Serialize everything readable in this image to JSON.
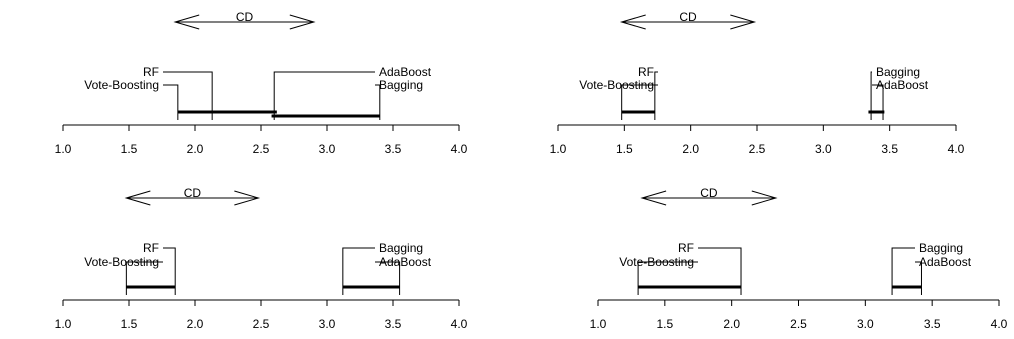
{
  "chart_data": [
    {
      "type": "critical-difference-diagram",
      "xlim": [
        1.0,
        4.0
      ],
      "ticks": [
        "1.0",
        "1.5",
        "2.0",
        "2.5",
        "3.0",
        "3.5",
        "4.0"
      ],
      "cd_label": "CD",
      "cd_range": [
        1.85,
        2.9
      ],
      "methods": [
        {
          "name": "Vote-Boosting",
          "rank": 1.87,
          "side": "left"
        },
        {
          "name": "RF",
          "rank": 2.13,
          "side": "left"
        },
        {
          "name": "AdaBoost",
          "rank": 2.6,
          "side": "right"
        },
        {
          "name": "Bagging",
          "rank": 3.4,
          "side": "right"
        }
      ],
      "cliques": [
        [
          1.87,
          2.62
        ],
        [
          2.58,
          3.4
        ]
      ]
    },
    {
      "type": "critical-difference-diagram",
      "xlim": [
        1.0,
        4.0
      ],
      "ticks": [
        "1.0",
        "1.5",
        "2.0",
        "2.5",
        "3.0",
        "3.5",
        "4.0"
      ],
      "cd_label": "CD",
      "cd_range": [
        1.48,
        2.48
      ],
      "methods": [
        {
          "name": "Vote-Boosting",
          "rank": 1.48,
          "side": "left"
        },
        {
          "name": "RF",
          "rank": 1.73,
          "side": "left"
        },
        {
          "name": "Bagging",
          "rank": 3.36,
          "side": "right"
        },
        {
          "name": "AdaBoost",
          "rank": 3.45,
          "side": "right"
        }
      ],
      "cliques": [
        [
          1.48,
          1.73
        ],
        [
          3.34,
          3.46
        ]
      ]
    },
    {
      "type": "critical-difference-diagram",
      "xlim": [
        1.0,
        4.0
      ],
      "ticks": [
        "1.0",
        "1.5",
        "2.0",
        "2.5",
        "3.0",
        "3.5",
        "4.0"
      ],
      "cd_label": "CD",
      "cd_range": [
        1.48,
        2.48
      ],
      "methods": [
        {
          "name": "Vote-Boosting",
          "rank": 1.48,
          "side": "left"
        },
        {
          "name": "RF",
          "rank": 1.85,
          "side": "left"
        },
        {
          "name": "Bagging",
          "rank": 3.12,
          "side": "right"
        },
        {
          "name": "AdaBoost",
          "rank": 3.55,
          "side": "right"
        }
      ],
      "cliques": [
        [
          1.48,
          1.85
        ],
        [
          3.12,
          3.55
        ]
      ]
    },
    {
      "type": "critical-difference-diagram",
      "xlim": [
        1.0,
        4.0
      ],
      "ticks": [
        "1.0",
        "1.5",
        "2.0",
        "2.5",
        "3.0",
        "3.5",
        "4.0"
      ],
      "cd_label": "CD",
      "cd_range": [
        1.33,
        2.33
      ],
      "methods": [
        {
          "name": "Vote-Boosting",
          "rank": 1.3,
          "side": "left"
        },
        {
          "name": "RF",
          "rank": 2.07,
          "side": "left"
        },
        {
          "name": "Bagging",
          "rank": 3.2,
          "side": "right"
        },
        {
          "name": "AdaBoost",
          "rank": 3.42,
          "side": "right"
        }
      ],
      "cliques": [
        [
          1.3,
          2.07
        ],
        [
          3.2,
          3.42
        ]
      ]
    }
  ]
}
